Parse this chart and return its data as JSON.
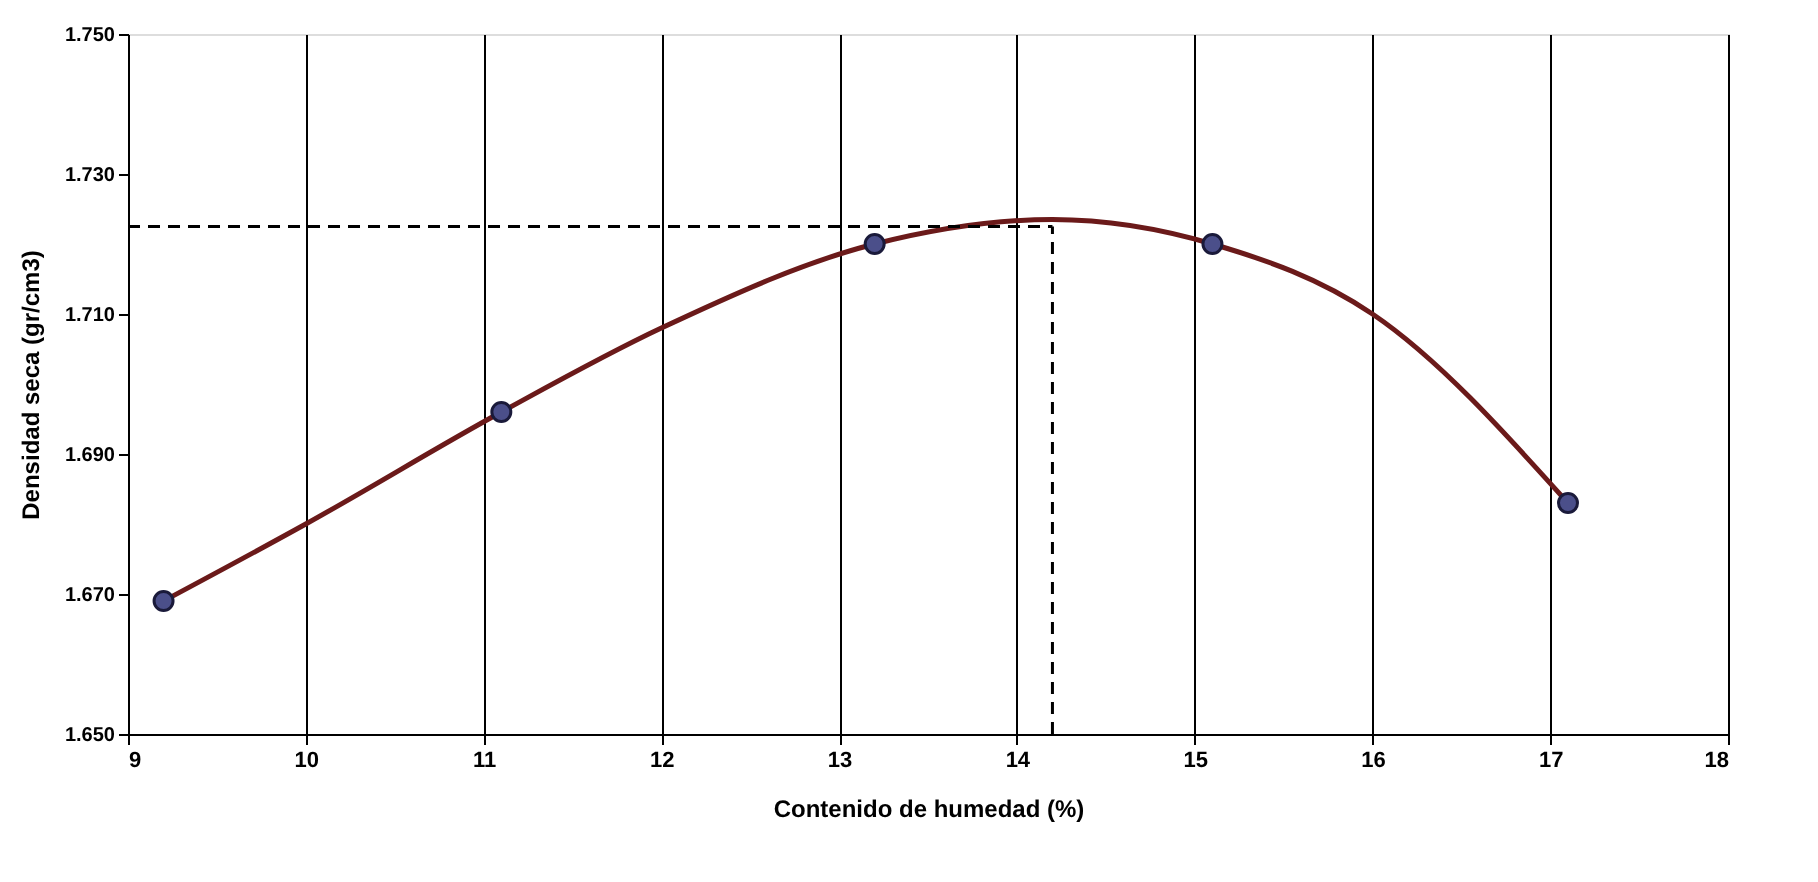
{
  "chart_data": {
    "type": "line",
    "xlabel": "Contenido de humedad (%)",
    "ylabel": "Densidad seca (gr/cm3)",
    "series": [
      {
        "color": "#6b1a1a",
        "marker": "none",
        "x": [
          9.2,
          10,
          11.1,
          12,
          13.2,
          14.2,
          15.1,
          16,
          17.1
        ],
        "values": [
          1.669,
          1.68,
          1.696,
          1.708,
          1.72,
          1.7235,
          1.72,
          1.71,
          1.683
        ]
      },
      {
        "type": "scatter",
        "color": "#4b4f8a",
        "marker": "circle",
        "x": [
          9.2,
          11.1,
          13.2,
          15.1,
          17.1
        ],
        "values": [
          1.669,
          1.696,
          1.72,
          1.72,
          1.683
        ]
      }
    ],
    "xlim": [
      9,
      18
    ],
    "xticks": [
      9,
      10,
      11,
      12,
      13,
      14,
      15,
      16,
      17,
      18
    ],
    "ylim": [
      1.65,
      1.75
    ],
    "yticks": [
      {
        "value": 1.65,
        "label": "1.650"
      },
      {
        "value": 1.67,
        "label": "1.670"
      },
      {
        "value": 1.69,
        "label": "1.690"
      },
      {
        "value": 1.71,
        "label": "1.710"
      },
      {
        "value": 1.73,
        "label": "1.730"
      },
      {
        "value": 1.75,
        "label": "1.750"
      }
    ],
    "ref_lines": [
      {
        "axis": "y",
        "value": 1.7225,
        "color": "#000000",
        "line_style": "dashed"
      },
      {
        "axis": "x",
        "value": 14.2,
        "color": "#000000",
        "line_style": "dashed"
      }
    ],
    "grid": "x",
    "legend": false
  }
}
